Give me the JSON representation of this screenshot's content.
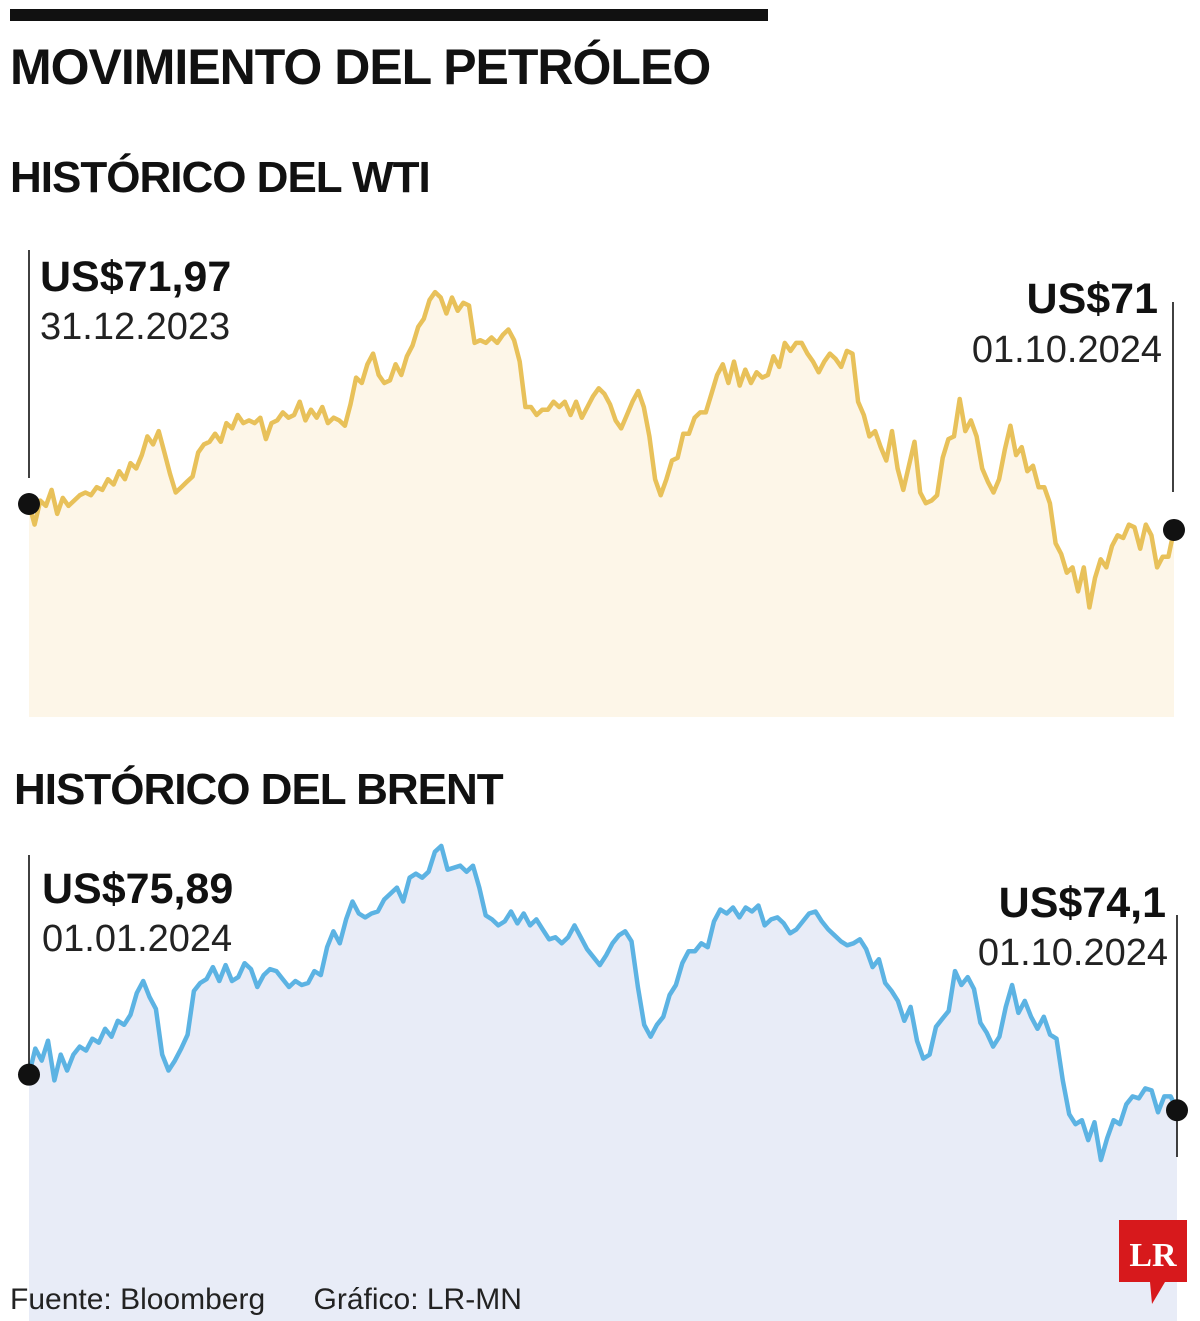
{
  "title": "MOVIMIENTO DEL PETRÓLEO",
  "footer": {
    "source": "Fuente: Bloomberg",
    "credit": "Gráfico: LR-MN"
  },
  "logo": {
    "text": "LR",
    "color": "#d7191c"
  },
  "colors": {
    "wti_line": "#e8c15a",
    "wti_fill": "#fdf6e8",
    "brent_line": "#5cb3e3",
    "brent_fill": "#e8ecf7",
    "marker": "#111111"
  },
  "chart_data": [
    {
      "type": "line",
      "title": "HISTÓRICO DEL WTI",
      "start": {
        "value_label": "US$71,97",
        "date_label": "31.12.2023"
      },
      "end": {
        "value_label": "US$71",
        "date_label": "01.10.2024"
      },
      "series": [
        {
          "values": [
            71.97,
            71.2,
            72.1,
            71.9,
            72.5,
            71.6,
            72.2,
            71.9,
            72.1,
            72.3,
            72.4,
            72.3,
            72.6,
            72.5,
            72.9,
            72.7,
            73.2,
            72.9,
            73.5,
            73.3,
            73.8,
            74.5,
            74.2,
            74.7,
            73.9,
            73.1,
            72.4,
            72.6,
            72.8,
            73.0,
            73.9,
            74.2,
            74.3,
            74.6,
            74.3,
            75.0,
            74.8,
            75.3,
            75.0,
            75.1,
            75.0,
            75.2,
            74.4,
            75.0,
            75.1,
            75.4,
            75.2,
            75.3,
            75.8,
            75.1,
            75.5,
            75.2,
            75.6,
            75.0,
            75.2,
            75.1,
            74.9,
            75.7,
            76.7,
            76.5,
            77.2,
            77.6,
            76.8,
            76.5,
            76.6,
            77.2,
            76.8,
            77.5,
            77.9,
            78.6,
            78.9,
            79.6,
            79.9,
            79.7,
            79.1,
            79.7,
            79.2,
            79.5,
            79.4,
            78.0,
            78.1,
            78.0,
            78.2,
            78.0,
            78.3,
            78.5,
            78.1,
            77.3,
            75.6,
            75.6,
            75.3,
            75.5,
            75.5,
            75.8,
            75.6,
            75.8,
            75.3,
            75.8,
            75.2,
            75.6,
            76.0,
            76.3,
            76.1,
            75.7,
            75.1,
            74.8,
            75.3,
            75.8,
            76.2,
            75.6,
            74.5,
            72.9,
            72.3,
            72.9,
            73.6,
            73.7,
            74.6,
            74.6,
            75.2,
            75.4,
            75.4,
            76.1,
            76.8,
            77.2,
            76.5,
            77.3,
            76.4,
            77.0,
            76.5,
            76.9,
            76.7,
            76.8,
            77.5,
            77.1,
            78.0,
            77.7,
            78.0,
            78.0,
            77.6,
            77.3,
            76.9,
            77.3,
            77.6,
            77.4,
            77.1,
            77.7,
            77.6,
            75.8,
            75.3,
            74.5,
            74.7,
            74.1,
            73.6,
            74.7,
            73.3,
            72.5,
            73.4,
            74.3,
            72.4,
            72.0,
            72.1,
            72.3,
            73.7,
            74.4,
            74.5,
            75.9,
            74.7,
            75.1,
            74.5,
            73.3,
            72.8,
            72.4,
            72.9,
            74.0,
            74.9,
            73.8,
            74.1,
            73.2,
            73.4,
            72.6,
            72.6,
            72.0,
            70.5,
            70.1,
            69.4,
            69.6,
            68.7,
            69.6,
            68.1,
            69.2,
            69.9,
            69.6,
            70.4,
            70.8,
            70.7,
            71.2,
            71.1,
            70.3,
            71.2,
            70.8,
            69.6,
            70.0,
            70.0,
            71.0
          ]
        }
      ],
      "ylim": [
        64,
        82
      ],
      "grid": false
    },
    {
      "type": "line",
      "title": "HISTÓRICO DEL BRENT",
      "start": {
        "value_label": "US$75,89",
        "date_label": "01.01.2024"
      },
      "end": {
        "value_label": "US$74,1",
        "date_label": "01.10.2024"
      },
      "series": [
        {
          "values": [
            75.89,
            77.2,
            76.6,
            77.6,
            75.6,
            76.9,
            76.1,
            76.9,
            77.3,
            77.1,
            77.7,
            77.5,
            78.2,
            77.8,
            78.6,
            78.4,
            78.9,
            80.0,
            80.6,
            79.8,
            79.2,
            76.9,
            76.1,
            76.6,
            77.2,
            77.9,
            80.1,
            80.5,
            80.7,
            81.3,
            80.6,
            81.4,
            80.6,
            80.8,
            81.5,
            81.2,
            80.3,
            80.9,
            81.2,
            81.1,
            80.7,
            80.3,
            80.6,
            80.4,
            80.5,
            81.1,
            80.9,
            82.3,
            83.1,
            82.5,
            83.7,
            84.6,
            84.0,
            83.8,
            84.0,
            84.1,
            84.7,
            85.0,
            85.3,
            84.6,
            85.8,
            86.0,
            85.8,
            86.1,
            87.1,
            87.4,
            86.2,
            86.3,
            86.4,
            86.1,
            86.4,
            85.3,
            83.9,
            83.7,
            83.4,
            83.6,
            84.1,
            83.5,
            84.0,
            83.4,
            83.7,
            83.2,
            82.7,
            82.8,
            82.5,
            82.8,
            83.4,
            82.8,
            82.2,
            81.8,
            81.4,
            81.9,
            82.5,
            82.9,
            83.1,
            82.6,
            80.3,
            78.4,
            77.8,
            78.4,
            78.8,
            79.9,
            80.4,
            81.5,
            82.1,
            82.1,
            82.5,
            82.3,
            83.6,
            84.2,
            84.0,
            84.3,
            83.8,
            84.3,
            84.1,
            84.4,
            83.4,
            83.7,
            83.8,
            83.5,
            83.0,
            83.2,
            83.6,
            84.0,
            84.1,
            83.6,
            83.2,
            82.9,
            82.6,
            82.4,
            82.5,
            82.7,
            82.2,
            81.3,
            81.7,
            80.5,
            80.1,
            79.6,
            78.6,
            79.3,
            77.6,
            76.7,
            76.9,
            78.3,
            78.7,
            79.1,
            81.1,
            80.4,
            80.8,
            80.2,
            78.5,
            78.0,
            77.3,
            77.8,
            79.3,
            80.4,
            79.0,
            79.6,
            78.8,
            78.2,
            78.8,
            77.9,
            77.7,
            75.6,
            73.9,
            73.4,
            73.6,
            72.6,
            73.5,
            71.6,
            72.7,
            73.6,
            73.4,
            74.4,
            74.8,
            74.7,
            75.2,
            75.1,
            74.0,
            74.8,
            74.8,
            74.1
          ]
        }
      ],
      "ylim": [
        63.5,
        88.6
      ],
      "grid": false
    }
  ]
}
